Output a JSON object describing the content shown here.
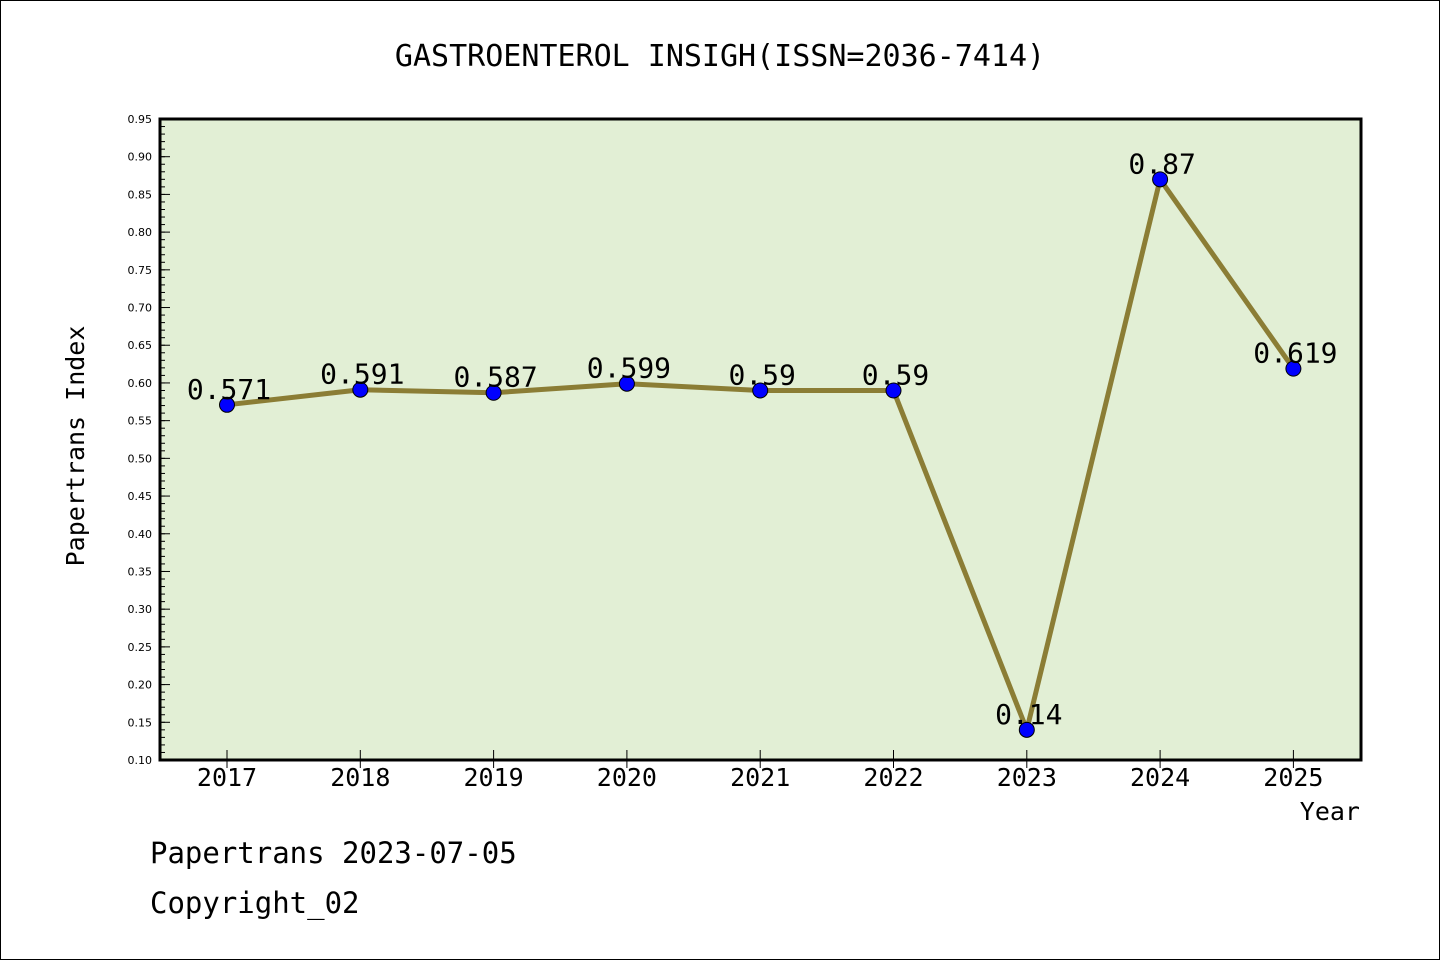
{
  "chart_data": {
    "type": "line",
    "title": "GASTROENTEROL INSIGH(ISSN=2036-7414)",
    "xlabel": "Year",
    "ylabel": "Papertrans Index",
    "categories": [
      "2017",
      "2018",
      "2019",
      "2020",
      "2021",
      "2022",
      "2023",
      "2024",
      "2025"
    ],
    "values": [
      0.571,
      0.591,
      0.587,
      0.599,
      0.59,
      0.59,
      0.14,
      0.87,
      0.619
    ],
    "data_labels": [
      "0.571",
      "0.591",
      "0.587",
      "0.599",
      "0.59",
      "0.59",
      "0.14",
      "0.87",
      "0.619"
    ],
    "ylim": [
      0.1,
      0.95
    ],
    "yticks": [
      "0.10",
      "0.15",
      "0.20",
      "0.25",
      "0.30",
      "0.35",
      "0.40",
      "0.45",
      "0.50",
      "0.55",
      "0.60",
      "0.65",
      "0.70",
      "0.75",
      "0.80",
      "0.85",
      "0.90",
      "0.95"
    ],
    "grid": false,
    "legend": "none",
    "colors": {
      "plot_background": "#e2efd5",
      "line": "#8b7d35",
      "marker": "#0000ff",
      "axis": "#000000"
    }
  },
  "footer": {
    "date_text": "Papertrans 2023-07-05",
    "copyright_text": "Copyright_02"
  }
}
